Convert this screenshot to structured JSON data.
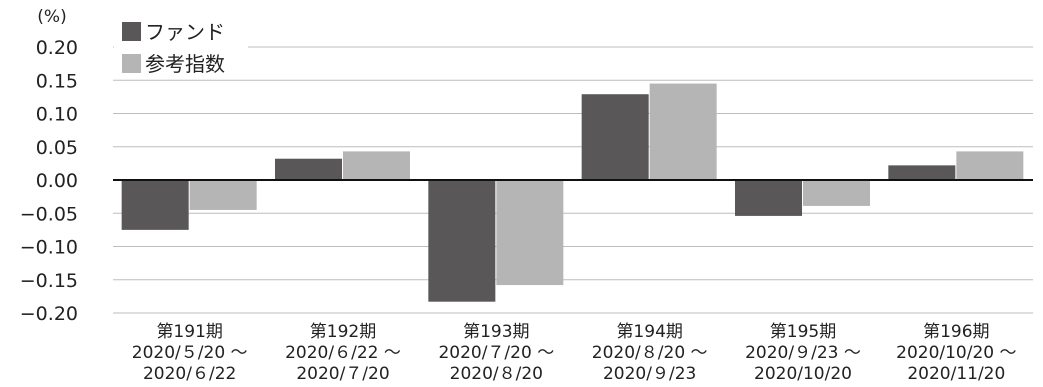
{
  "chart_data": {
    "type": "bar",
    "unit_label": "(%)",
    "categories": [
      {
        "name": "第191期",
        "line1": "2020/５/20 ～",
        "line2": "2020/６/22"
      },
      {
        "name": "第192期",
        "line1": "2020/６/22 ～",
        "line2": "2020/７/20"
      },
      {
        "name": "第193期",
        "line1": "2020/７/20 ～",
        "line2": "2020/８/20"
      },
      {
        "name": "第194期",
        "line1": "2020/８/20 ～",
        "line2": "2020/９/23"
      },
      {
        "name": "第195期",
        "line1": "2020/９/23 ～",
        "line2": "2020/10/20"
      },
      {
        "name": "第196期",
        "line1": "2020/10/20 ～",
        "line2": "2020/11/20"
      }
    ],
    "series": [
      {
        "name": "ファンド",
        "color": "#595757",
        "values": [
          -0.075,
          0.032,
          -0.183,
          0.129,
          -0.054,
          0.022
        ]
      },
      {
        "name": "参考指数",
        "color": "#b5b5b5",
        "values": [
          -0.045,
          0.043,
          -0.158,
          0.145,
          -0.039,
          0.043
        ]
      }
    ],
    "ylim": [
      -0.2,
      0.2
    ],
    "yticks": [
      {
        "value": 0.2,
        "label": "0.20"
      },
      {
        "value": 0.15,
        "label": "0.15"
      },
      {
        "value": 0.1,
        "label": "0.10"
      },
      {
        "value": 0.05,
        "label": "0.05"
      },
      {
        "value": 0.0,
        "label": "0.00"
      },
      {
        "value": -0.05,
        "label": "−0.05"
      },
      {
        "value": -0.1,
        "label": "−0.10"
      },
      {
        "value": -0.15,
        "label": "−0.15"
      },
      {
        "value": -0.2,
        "label": "−0.20"
      }
    ],
    "grid": true,
    "legend_position": "top-left"
  }
}
